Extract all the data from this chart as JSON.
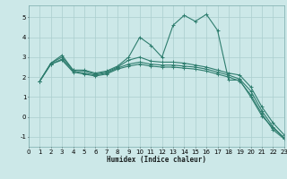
{
  "xlabel": "Humidex (Indice chaleur)",
  "background_color": "#cce8e8",
  "grid_color": "#aacece",
  "line_color": "#2e7d6e",
  "xlim": [
    0,
    23
  ],
  "ylim": [
    -1.5,
    5.6
  ],
  "xticks": [
    0,
    1,
    2,
    3,
    4,
    5,
    6,
    7,
    8,
    9,
    10,
    11,
    12,
    13,
    14,
    15,
    16,
    17,
    18,
    19,
    20,
    21,
    22,
    23
  ],
  "yticks": [
    -1,
    0,
    1,
    2,
    3,
    4,
    5
  ],
  "lines": [
    {
      "x": [
        1,
        2,
        3,
        4,
        5,
        6,
        7,
        8,
        9,
        10,
        11,
        12,
        13,
        14,
        15,
        16,
        17,
        18,
        19,
        20,
        21,
        22,
        23
      ],
      "y": [
        1.8,
        2.7,
        3.1,
        2.35,
        2.35,
        2.2,
        2.3,
        2.55,
        3.0,
        4.0,
        3.6,
        3.0,
        4.6,
        5.1,
        4.8,
        5.15,
        4.35,
        1.85,
        1.85,
        1.0,
        0.05,
        -0.55,
        -1.05
      ]
    },
    {
      "x": [
        1,
        2,
        3,
        4,
        5,
        6,
        7,
        8,
        9,
        10,
        11,
        12,
        13,
        14,
        15,
        16,
        17,
        18,
        19,
        20,
        21,
        22,
        23
      ],
      "y": [
        1.8,
        2.7,
        3.0,
        2.35,
        2.3,
        2.15,
        2.25,
        2.5,
        2.85,
        3.0,
        2.8,
        2.75,
        2.75,
        2.7,
        2.6,
        2.5,
        2.35,
        2.2,
        2.1,
        1.5,
        0.5,
        -0.3,
        -0.9
      ]
    },
    {
      "x": [
        1,
        2,
        3,
        4,
        5,
        6,
        7,
        8,
        9,
        10,
        11,
        12,
        13,
        14,
        15,
        16,
        17,
        18,
        19,
        20,
        21,
        22,
        23
      ],
      "y": [
        1.8,
        2.65,
        2.9,
        2.3,
        2.2,
        2.1,
        2.2,
        2.45,
        2.65,
        2.75,
        2.65,
        2.6,
        2.6,
        2.55,
        2.5,
        2.4,
        2.25,
        2.1,
        1.9,
        1.3,
        0.3,
        -0.5,
        -1.05
      ]
    },
    {
      "x": [
        1,
        2,
        3,
        4,
        5,
        6,
        7,
        8,
        9,
        10,
        11,
        12,
        13,
        14,
        15,
        16,
        17,
        18,
        19,
        20,
        21,
        22,
        23
      ],
      "y": [
        1.8,
        2.65,
        2.85,
        2.25,
        2.15,
        2.05,
        2.15,
        2.4,
        2.55,
        2.65,
        2.55,
        2.5,
        2.5,
        2.45,
        2.4,
        2.3,
        2.15,
        2.0,
        1.8,
        1.1,
        0.15,
        -0.65,
        -1.1
      ]
    }
  ]
}
